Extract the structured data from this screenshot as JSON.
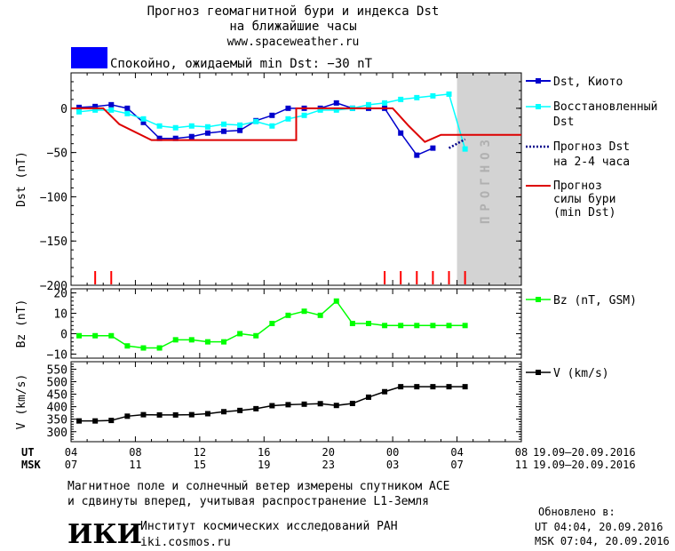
{
  "header": {
    "title_line1": "Прогноз геомагнитной бури и индекса Dst",
    "title_line2": "на ближайшие часы",
    "url": "www.spaceweather.ru",
    "status_color": "#0000ff",
    "status_text": "Спокойно, ожидаемый min Dst: −30 nT"
  },
  "legend": {
    "dst_kyoto": "Dst, Киото",
    "reconstructed_1": "Восстановленный",
    "reconstructed_2": "Dst",
    "forecast_dst_1": "Прогноз Dst",
    "forecast_dst_2": "на 2-4 часа",
    "forecast_storm_1": "Прогноз",
    "forecast_storm_2": "силы бури",
    "forecast_storm_3": "(min Dst)",
    "bz": "Bz (nT, GSM)",
    "v": "V (km/s)"
  },
  "time_axis": {
    "ut_label": "UT",
    "msk_label": "MSK",
    "ut_ticks": [
      "04",
      "08",
      "12",
      "16",
      "20",
      "00",
      "04",
      "08"
    ],
    "msk_ticks": [
      "07",
      "11",
      "15",
      "19",
      "23",
      "03",
      "07",
      "11"
    ],
    "ut_range": "19.09–20.09.2016",
    "msk_range": "19.09–20.09.2016"
  },
  "footer": {
    "note_line1": "Магнитное поле и солнечный ветер измерены спутником ACE",
    "note_line2": "и сдвинуты вперед, учитывая распространение L1-Земля",
    "logo_text": "ИКИ",
    "institute": "Институт космических исследований РАН",
    "site": "iki.cosmos.ru",
    "updated_label": "Обновлено в:",
    "updated_ut": "UT  04:04, 20.09.2016",
    "updated_msk": "MSK 07:04, 20.09.2016"
  },
  "chart_data": [
    {
      "type": "line",
      "panel": "Dst",
      "ylabel": "Dst (nT)",
      "ylim": [
        -200,
        40
      ],
      "yticks": [
        0,
        -50,
        -100,
        -150,
        -200
      ],
      "x_hours": [
        0,
        28
      ],
      "forecast_band": {
        "x_start": 24,
        "x_end": 28,
        "label": "ПРОГНОЗ",
        "color": "#d3d3d3"
      },
      "series": [
        {
          "name": "Dst, Киото",
          "color": "#0000cc",
          "marker": "square",
          "x": [
            0.5,
            1.5,
            2.5,
            3.5,
            4.5,
            5.5,
            6.5,
            7.5,
            8.5,
            9.5,
            10.5,
            11.5,
            12.5,
            13.5,
            14.5,
            15.5,
            16.5,
            17.5,
            18.5,
            19.5,
            20.5,
            21.5,
            22.5,
            23.5
          ],
          "y": [
            1,
            2,
            4,
            0,
            -16,
            -34,
            -34,
            -32,
            -28,
            -26,
            -25,
            -14,
            -8,
            0,
            0,
            0,
            6,
            0,
            0,
            0,
            -28,
            -53,
            -45,
            null
          ]
        },
        {
          "name": "Восстановленный Dst",
          "color": "#00ffff",
          "marker": "square",
          "x": [
            0.5,
            1.5,
            2.5,
            3.5,
            4.5,
            5.5,
            6.5,
            7.5,
            8.5,
            9.5,
            10.5,
            11.5,
            12.5,
            13.5,
            14.5,
            15.5,
            16.5,
            17.5,
            18.5,
            19.5,
            20.5,
            21.5,
            22.5,
            23.5,
            24.5
          ],
          "y": [
            -4,
            -2,
            -2,
            -6,
            -12,
            -20,
            -22,
            -20,
            -21,
            -18,
            -19,
            -15,
            -20,
            -12,
            -8,
            -2,
            -2,
            0,
            4,
            6,
            10,
            12,
            14,
            16,
            -46
          ]
        },
        {
          "name": "Прогноз Dst на 2-4 часа",
          "color": "#00008b",
          "marker": "none",
          "x": [
            23.5,
            24.5
          ],
          "y": [
            -45,
            -35
          ]
        },
        {
          "name": "Прогноз силы бури (min Dst)",
          "color": "#dd0000",
          "marker": "none",
          "x": [
            0,
            2,
            3,
            5,
            14,
            14,
            15,
            20,
            21,
            22,
            23,
            24,
            28
          ],
          "y": [
            0,
            0,
            -18,
            -36,
            -36,
            0,
            0,
            0,
            -20,
            -38,
            -30,
            -30,
            -30
          ]
        }
      ],
      "markers": {
        "color": "#ff0000",
        "x": [
          1.5,
          2.5,
          19.5,
          20.5,
          21.5,
          22.5,
          23.5,
          24.5
        ]
      }
    },
    {
      "type": "line",
      "panel": "Bz",
      "ylabel": "Bz (nT)",
      "ylim": [
        -12,
        22
      ],
      "yticks": [
        20,
        10,
        0,
        -10
      ],
      "series": [
        {
          "name": "Bz (nT, GSM)",
          "color": "#00ff00",
          "marker": "square",
          "x": [
            0.5,
            1.5,
            2.5,
            3.5,
            4.5,
            5.5,
            6.5,
            7.5,
            8.5,
            9.5,
            10.5,
            11.5,
            12.5,
            13.5,
            14.5,
            15.5,
            16.5,
            17.5,
            18.5,
            19.5,
            20.5,
            21.5,
            22.5,
            23.5,
            24.5
          ],
          "y": [
            -1,
            -1,
            -1,
            -6,
            -7,
            -7,
            -3,
            -3,
            -4,
            -4,
            0,
            -1,
            5,
            9,
            11,
            9,
            16,
            5,
            5,
            4,
            4,
            4,
            4,
            4,
            4
          ]
        }
      ]
    },
    {
      "type": "line",
      "panel": "V",
      "ylabel": "V (km/s)",
      "ylim": [
        260,
        580
      ],
      "yticks": [
        550,
        500,
        450,
        400,
        350,
        300
      ],
      "series": [
        {
          "name": "V (km/s)",
          "color": "#000000",
          "marker": "square",
          "x": [
            0.5,
            1.5,
            2.5,
            3.5,
            4.5,
            5.5,
            6.5,
            7.5,
            8.5,
            9.5,
            10.5,
            11.5,
            12.5,
            13.5,
            14.5,
            15.5,
            16.5,
            17.5,
            18.5,
            19.5,
            20.5,
            21.5,
            22.5,
            23.5,
            24.5
          ],
          "y": [
            343,
            343,
            345,
            362,
            368,
            367,
            367,
            368,
            372,
            380,
            385,
            392,
            404,
            408,
            410,
            412,
            405,
            413,
            438,
            460,
            480,
            480,
            480,
            480,
            480
          ]
        }
      ]
    }
  ]
}
